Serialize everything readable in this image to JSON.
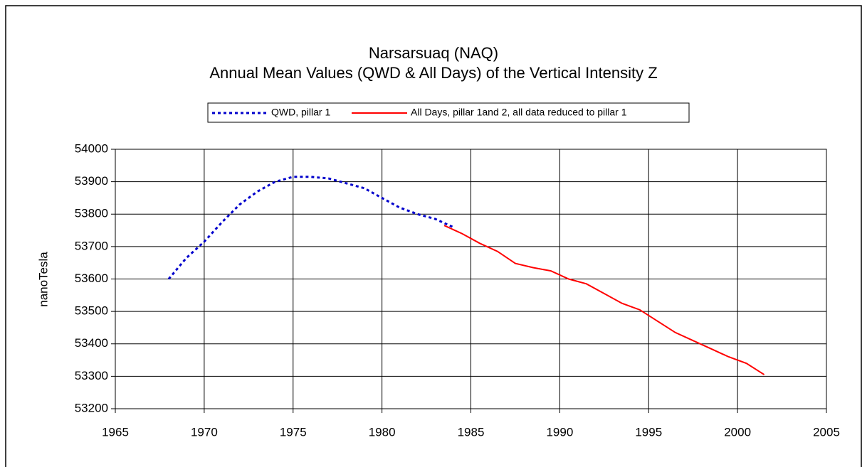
{
  "chart_data": {
    "type": "line",
    "title": "Narsarsuaq (NAQ)",
    "subtitle": "Annual Mean Values (QWD & All Days) of the Vertical Intensity Z",
    "y_label": "nanoTesla",
    "xlim": [
      1965,
      2005
    ],
    "xticks": [
      1965,
      1970,
      1975,
      1980,
      1985,
      1990,
      1995,
      2000,
      2005
    ],
    "ylim": [
      53200,
      54000
    ],
    "yticks": [
      53200,
      53300,
      53400,
      53500,
      53600,
      53700,
      53800,
      53900,
      54000
    ],
    "grid": true,
    "legend": "top",
    "series": [
      {
        "name": "QWD, pillar 1",
        "color": "#0000cc",
        "line_style": "dotted",
        "x": [
          1968,
          1969,
          1970,
          1971,
          1972,
          1973,
          1974,
          1975,
          1976,
          1977,
          1978,
          1979,
          1980,
          1981,
          1982,
          1983,
          1984
        ],
        "values": [
          53600,
          53665,
          53715,
          53775,
          53830,
          53870,
          53900,
          53915,
          53915,
          53910,
          53895,
          53880,
          53850,
          53820,
          53800,
          53785,
          53760
        ]
      },
      {
        "name": "All Days, pillar 1and 2, all data reduced to pillar 1",
        "color": "#ff0000",
        "line_style": "solid",
        "x": [
          1983.5,
          1984.5,
          1985.5,
          1986.5,
          1987.5,
          1988.5,
          1989.5,
          1990.5,
          1991.5,
          1992.5,
          1993.5,
          1994.5,
          1995.5,
          1996.5,
          1997.5,
          1998.5,
          1999.5,
          2000.5,
          2001.5
        ],
        "values": [
          53765,
          53740,
          53710,
          53685,
          53648,
          53635,
          53625,
          53600,
          53585,
          53555,
          53525,
          53505,
          53470,
          53435,
          53410,
          53385,
          53360,
          53340,
          53305
        ]
      }
    ]
  }
}
